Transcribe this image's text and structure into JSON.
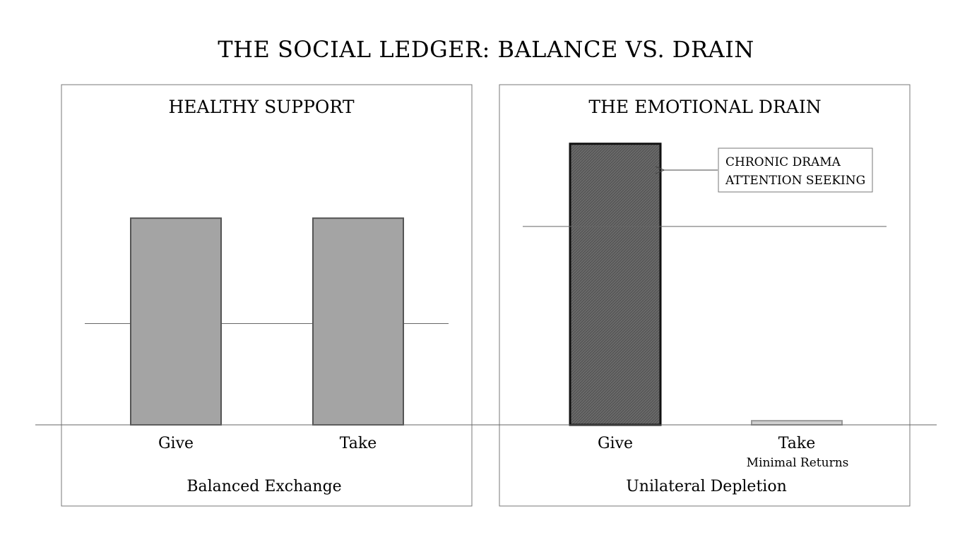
{
  "title": "THE SOCIAL LEDGER: BALANCE VS. DRAIN",
  "colors": {
    "bar_balanced": "#a4a4a4",
    "bar_drain": "#6a6a6a",
    "bar_minimal": "#cfcfcf",
    "outline": "#555555"
  },
  "chart_data": [
    {
      "type": "bar",
      "title": "HEALTHY SUPPORT",
      "caption": "Balanced Exchange",
      "categories": [
        "Give",
        "Take"
      ],
      "sublabels": [
        "",
        ""
      ],
      "values": [
        100,
        100
      ],
      "reference_line": 49,
      "ylim": [
        0,
        140
      ],
      "xlabel": "",
      "ylabel": "",
      "grid": false,
      "annotation": null
    },
    {
      "type": "bar",
      "title": "THE EMOTIONAL DRAIN",
      "caption": "Unilateral Depletion",
      "categories": [
        "Give",
        "Take"
      ],
      "sublabels": [
        "",
        "Minimal Returns"
      ],
      "values": [
        136,
        2
      ],
      "reference_line": 96,
      "ylim": [
        0,
        140
      ],
      "xlabel": "",
      "ylabel": "",
      "grid": false,
      "annotation": {
        "lines": [
          "CHRONIC DRAMA",
          "ATTENTION SEEKING"
        ],
        "points_to": "Give"
      }
    }
  ]
}
